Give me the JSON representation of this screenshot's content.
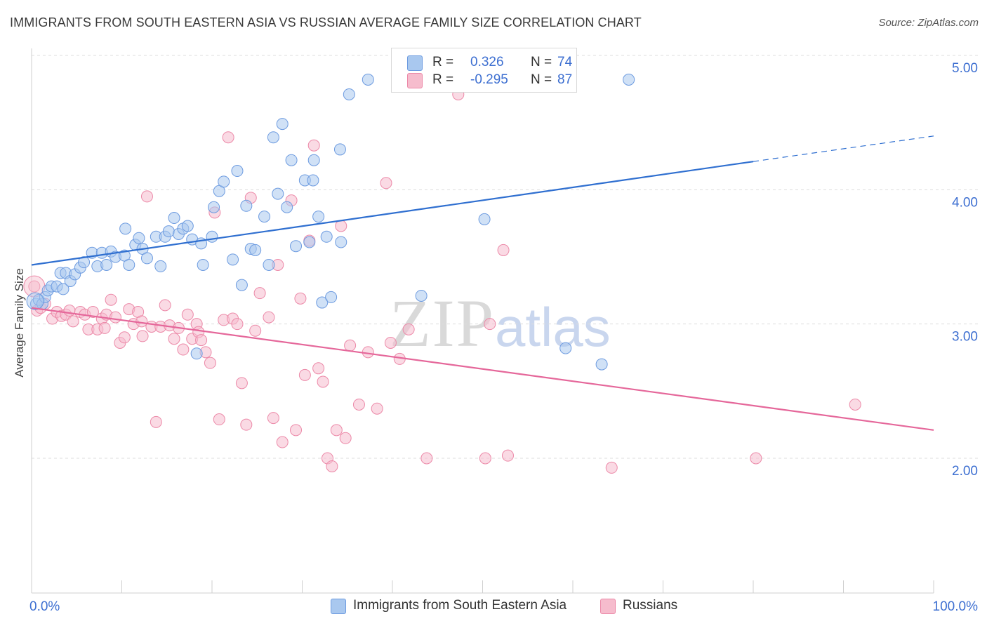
{
  "title": "IMMIGRANTS FROM SOUTH EASTERN ASIA VS RUSSIAN AVERAGE FAMILY SIZE CORRELATION CHART",
  "source": "Source: ZipAtlas.com",
  "watermark": {
    "zip": "ZIP",
    "atlas": "atlas"
  },
  "legend_top": {
    "rows": [
      {
        "r_label": "R =",
        "r_value": "0.326",
        "n_label": "N =",
        "n_value": "74"
      },
      {
        "r_label": "R =",
        "r_value": "-0.295",
        "n_label": "N =",
        "n_value": "87"
      }
    ]
  },
  "colors": {
    "blue_fill": "#a9c8ef",
    "blue_stroke": "#6d9be0",
    "blue_line": "#2f6fd0",
    "pink_fill": "#f6bccd",
    "pink_stroke": "#ec89a8",
    "pink_line": "#e5679a",
    "tick_text": "#3d6fd1",
    "grid": "#dddddd"
  },
  "chart_data": {
    "type": "scatter",
    "title": "IMMIGRANTS FROM SOUTH EASTERN ASIA VS RUSSIAN AVERAGE FAMILY SIZE CORRELATION CHART",
    "xlabel": "",
    "ylabel": "Average Family Size",
    "xlim": [
      0,
      100
    ],
    "ylim": [
      1.2,
      5.1
    ],
    "x_tick_labels": [
      "0.0%",
      "100.0%"
    ],
    "y_ticks": [
      2.0,
      3.0,
      4.0,
      5.0
    ],
    "y_tick_labels": [
      "2.00",
      "3.00",
      "4.00",
      "5.00"
    ],
    "grid": true,
    "legend_position": "bottom",
    "series": [
      {
        "name": "Immigrants from South Eastern Asia",
        "color": "#a9c8ef",
        "r": 0.326,
        "n": 74,
        "trend": {
          "x": [
            0,
            80
          ],
          "y": [
            3.44,
            4.21
          ],
          "dashed_extension": {
            "x": [
              80,
              100
            ],
            "y": [
              4.21,
              4.4
            ]
          }
        },
        "points": [
          [
            0.5,
            3.15
          ],
          [
            0.8,
            3.18
          ],
          [
            1.2,
            3.15
          ],
          [
            1.5,
            3.2
          ],
          [
            1.8,
            3.25
          ],
          [
            2.2,
            3.28
          ],
          [
            2.8,
            3.28
          ],
          [
            3.2,
            3.38
          ],
          [
            3.5,
            3.26
          ],
          [
            3.8,
            3.38
          ],
          [
            4.3,
            3.32
          ],
          [
            4.8,
            3.37
          ],
          [
            5.4,
            3.42
          ],
          [
            5.8,
            3.46
          ],
          [
            6.7,
            3.53
          ],
          [
            7.3,
            3.43
          ],
          [
            7.8,
            3.53
          ],
          [
            8.3,
            3.44
          ],
          [
            8.8,
            3.54
          ],
          [
            9.3,
            3.5
          ],
          [
            10.3,
            3.51
          ],
          [
            10.4,
            3.71
          ],
          [
            10.8,
            3.44
          ],
          [
            11.5,
            3.59
          ],
          [
            11.9,
            3.64
          ],
          [
            12.3,
            3.56
          ],
          [
            12.8,
            3.49
          ],
          [
            13.8,
            3.65
          ],
          [
            14.3,
            3.43
          ],
          [
            14.8,
            3.65
          ],
          [
            15.2,
            3.69
          ],
          [
            15.8,
            3.79
          ],
          [
            16.3,
            3.67
          ],
          [
            16.8,
            3.71
          ],
          [
            17.3,
            3.73
          ],
          [
            17.8,
            3.63
          ],
          [
            18.3,
            2.78
          ],
          [
            18.8,
            3.6
          ],
          [
            19.0,
            3.44
          ],
          [
            20.0,
            3.65
          ],
          [
            20.2,
            3.87
          ],
          [
            20.8,
            3.99
          ],
          [
            21.3,
            4.06
          ],
          [
            22.3,
            3.48
          ],
          [
            22.8,
            4.14
          ],
          [
            23.3,
            3.29
          ],
          [
            23.8,
            3.88
          ],
          [
            24.3,
            3.56
          ],
          [
            24.8,
            3.55
          ],
          [
            25.8,
            3.8
          ],
          [
            26.3,
            3.44
          ],
          [
            26.8,
            4.39
          ],
          [
            27.3,
            3.97
          ],
          [
            27.8,
            4.49
          ],
          [
            28.3,
            3.87
          ],
          [
            28.8,
            4.22
          ],
          [
            29.3,
            3.58
          ],
          [
            30.3,
            4.07
          ],
          [
            30.8,
            3.61
          ],
          [
            31.2,
            4.07
          ],
          [
            31.3,
            4.22
          ],
          [
            31.8,
            3.8
          ],
          [
            32.2,
            3.16
          ],
          [
            32.7,
            3.65
          ],
          [
            33.2,
            3.2
          ],
          [
            34.2,
            4.3
          ],
          [
            34.3,
            3.61
          ],
          [
            35.2,
            4.71
          ],
          [
            37.3,
            4.82
          ],
          [
            43.2,
            3.21
          ],
          [
            50.2,
            3.78
          ],
          [
            59.2,
            2.82
          ],
          [
            63.2,
            2.7
          ],
          [
            66.2,
            4.82
          ]
        ]
      },
      {
        "name": "Russians",
        "color": "#f6bccd",
        "r": -0.295,
        "n": 87,
        "trend": {
          "x": [
            0,
            100
          ],
          "y": [
            3.12,
            2.21
          ]
        },
        "points": [
          [
            0.3,
            3.28
          ],
          [
            0.6,
            3.1
          ],
          [
            1.0,
            3.12
          ],
          [
            1.5,
            3.15
          ],
          [
            2.3,
            3.04
          ],
          [
            2.8,
            3.09
          ],
          [
            3.3,
            3.06
          ],
          [
            3.8,
            3.07
          ],
          [
            4.2,
            3.1
          ],
          [
            4.6,
            3.02
          ],
          [
            5.4,
            3.09
          ],
          [
            5.9,
            3.07
          ],
          [
            6.3,
            2.96
          ],
          [
            6.8,
            3.09
          ],
          [
            7.3,
            2.96
          ],
          [
            7.8,
            3.04
          ],
          [
            8.1,
            2.97
          ],
          [
            8.3,
            3.07
          ],
          [
            8.8,
            3.18
          ],
          [
            9.3,
            3.05
          ],
          [
            9.8,
            2.86
          ],
          [
            10.3,
            2.9
          ],
          [
            10.8,
            3.11
          ],
          [
            11.3,
            3.0
          ],
          [
            11.8,
            3.09
          ],
          [
            12.2,
            3.02
          ],
          [
            12.3,
            2.91
          ],
          [
            12.8,
            3.95
          ],
          [
            13.3,
            2.98
          ],
          [
            13.8,
            2.27
          ],
          [
            14.3,
            2.98
          ],
          [
            14.8,
            3.14
          ],
          [
            15.3,
            2.99
          ],
          [
            15.8,
            2.89
          ],
          [
            16.3,
            2.97
          ],
          [
            16.8,
            2.81
          ],
          [
            17.3,
            3.07
          ],
          [
            17.8,
            2.89
          ],
          [
            18.3,
            3.0
          ],
          [
            18.5,
            2.94
          ],
          [
            18.8,
            2.88
          ],
          [
            19.3,
            2.79
          ],
          [
            19.8,
            2.71
          ],
          [
            20.3,
            3.83
          ],
          [
            20.8,
            2.29
          ],
          [
            21.3,
            3.03
          ],
          [
            21.8,
            4.39
          ],
          [
            22.3,
            3.04
          ],
          [
            22.8,
            3.0
          ],
          [
            23.3,
            2.56
          ],
          [
            23.8,
            2.25
          ],
          [
            24.3,
            3.94
          ],
          [
            24.8,
            2.95
          ],
          [
            25.3,
            3.23
          ],
          [
            26.3,
            3.05
          ],
          [
            26.8,
            2.3
          ],
          [
            27.3,
            3.44
          ],
          [
            27.8,
            2.12
          ],
          [
            28.8,
            3.92
          ],
          [
            29.3,
            2.21
          ],
          [
            29.8,
            3.19
          ],
          [
            30.3,
            2.62
          ],
          [
            30.8,
            3.62
          ],
          [
            31.3,
            4.33
          ],
          [
            31.8,
            2.67
          ],
          [
            32.3,
            2.57
          ],
          [
            32.8,
            2.0
          ],
          [
            33.3,
            1.94
          ],
          [
            33.8,
            2.21
          ],
          [
            34.3,
            3.73
          ],
          [
            34.8,
            2.15
          ],
          [
            35.3,
            2.84
          ],
          [
            36.3,
            2.4
          ],
          [
            37.3,
            2.79
          ],
          [
            38.3,
            2.37
          ],
          [
            39.3,
            4.05
          ],
          [
            39.8,
            2.86
          ],
          [
            40.8,
            2.74
          ],
          [
            41.8,
            2.96
          ],
          [
            43.8,
            2.0
          ],
          [
            47.3,
            4.71
          ],
          [
            50.3,
            2.0
          ],
          [
            50.8,
            3.0
          ],
          [
            52.3,
            3.55
          ],
          [
            52.8,
            2.02
          ],
          [
            64.3,
            1.93
          ],
          [
            80.3,
            2.0
          ],
          [
            91.3,
            2.4
          ]
        ]
      }
    ]
  },
  "legend_bottom": {
    "items": [
      {
        "label": "Immigrants from South Eastern Asia",
        "color": "#a9c8ef",
        "stroke": "#6d9be0"
      },
      {
        "label": "Russians",
        "color": "#f6bccd",
        "stroke": "#ec89a8"
      }
    ]
  }
}
